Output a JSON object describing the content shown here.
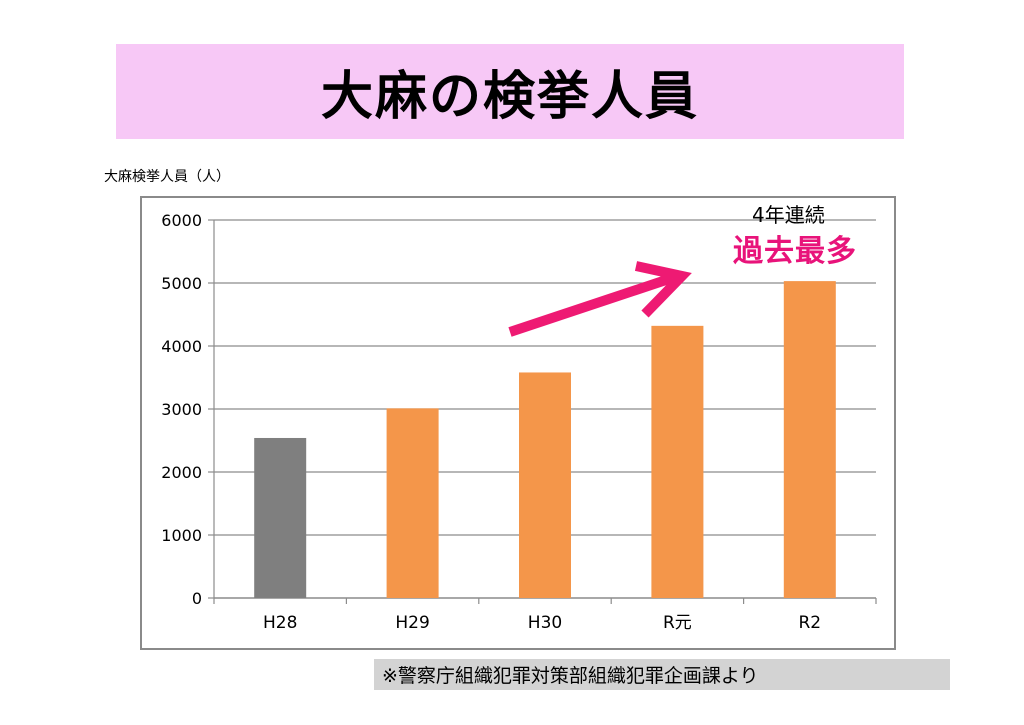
{
  "title": "大麻の検挙人員",
  "annotation": {
    "sub": "4年連続",
    "main": "過去最多"
  },
  "source": "※警察庁組織犯罪対策部組織犯罪企画課より",
  "colors": {
    "banner": "#f7c8f6",
    "bar_h28": "#7f7f7f",
    "bar_default": "#f4964a",
    "arrow": "#ee1a73",
    "annotation": "#e8137a",
    "source_bg": "#d3d3d3"
  },
  "chart_data": {
    "type": "bar",
    "ylabel": "大麻検挙人員（人）",
    "categories": [
      "H28",
      "H29",
      "H30",
      "R元",
      "R2"
    ],
    "values": [
      2540,
      3010,
      3580,
      4320,
      5030
    ],
    "ylim": [
      0,
      6000
    ],
    "yticks": [
      0,
      1000,
      2000,
      3000,
      4000,
      5000,
      6000
    ],
    "grid": true,
    "legend": "none"
  }
}
